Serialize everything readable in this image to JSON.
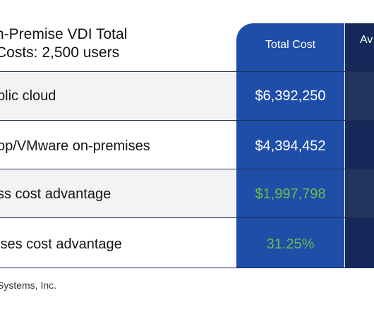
{
  "title": {
    "line1": "n-Premise VDI Total",
    "line2": "Costs: 2,500 users"
  },
  "columns": {
    "total": "Total Cost",
    "avg": "Av"
  },
  "rows": [
    {
      "label": "blic cloud",
      "total": "$6,392,250"
    },
    {
      "label": "op/VMware on-premises",
      "total": "$4,394,452"
    },
    {
      "label": "ss cost advantage",
      "total": "$1,997,798"
    },
    {
      "label": "ises cost advantage",
      "total": "31.25%"
    }
  ],
  "source": "Systems, Inc.",
  "colors": {
    "total_column": "#1f4ea8",
    "avg_column": "#15295a",
    "positive_value": "#64c14a"
  }
}
